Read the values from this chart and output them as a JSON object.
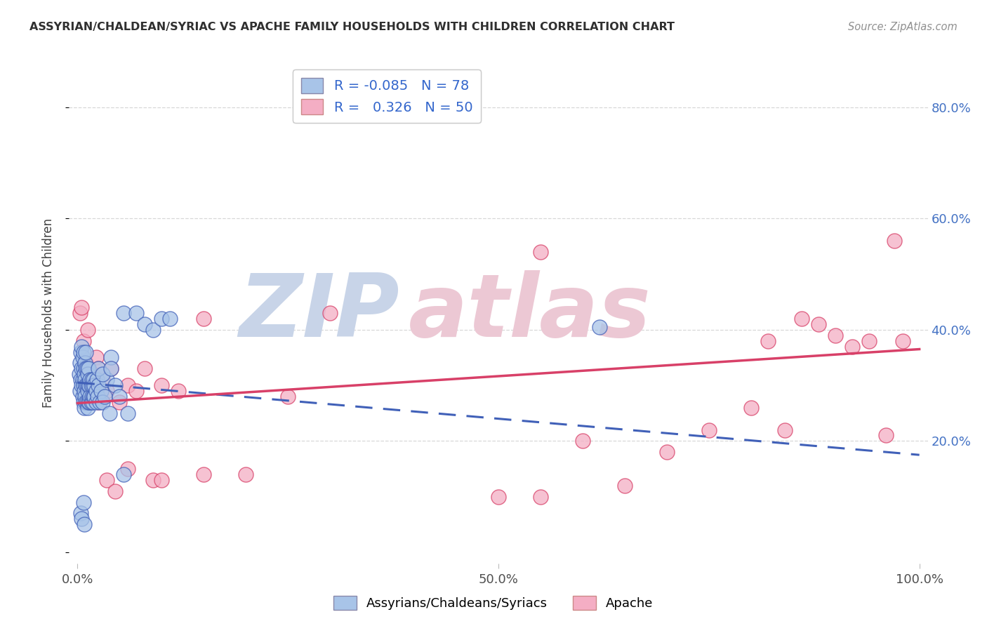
{
  "title": "ASSYRIAN/CHALDEAN/SYRIAC VS APACHE FAMILY HOUSEHOLDS WITH CHILDREN CORRELATION CHART",
  "source": "Source: ZipAtlas.com",
  "ylabel": "Family Households with Children",
  "legend_label1": "Assyrians/Chaldeans/Syriacs",
  "legend_label2": "Apache",
  "R1": -0.085,
  "N1": 78,
  "R2": 0.326,
  "N2": 50,
  "color1": "#a8c4e8",
  "color2": "#f4aec4",
  "line_color1": "#4060b8",
  "line_color2": "#d84068",
  "background_color": "#ffffff",
  "grid_color": "#d8d8d8",
  "title_color": "#303030",
  "source_color": "#909090",
  "right_tick_color": "#4472c4",
  "blue_x": [
    0.002,
    0.003,
    0.003,
    0.004,
    0.004,
    0.005,
    0.005,
    0.005,
    0.006,
    0.006,
    0.006,
    0.007,
    0.007,
    0.007,
    0.007,
    0.008,
    0.008,
    0.008,
    0.009,
    0.009,
    0.009,
    0.01,
    0.01,
    0.01,
    0.01,
    0.011,
    0.011,
    0.011,
    0.012,
    0.012,
    0.012,
    0.013,
    0.013,
    0.013,
    0.014,
    0.014,
    0.015,
    0.015,
    0.016,
    0.016,
    0.017,
    0.017,
    0.018,
    0.018,
    0.019,
    0.019,
    0.02,
    0.02,
    0.022,
    0.022,
    0.023,
    0.024,
    0.025,
    0.026,
    0.028,
    0.03,
    0.032,
    0.035,
    0.038,
    0.04,
    0.045,
    0.05,
    0.055,
    0.06,
    0.07,
    0.08,
    0.09,
    0.1,
    0.11,
    0.055,
    0.025,
    0.03,
    0.04,
    0.62,
    0.004,
    0.005,
    0.007,
    0.008
  ],
  "blue_y": [
    0.32,
    0.29,
    0.34,
    0.31,
    0.36,
    0.3,
    0.33,
    0.37,
    0.28,
    0.31,
    0.35,
    0.27,
    0.3,
    0.33,
    0.36,
    0.26,
    0.29,
    0.32,
    0.28,
    0.31,
    0.34,
    0.27,
    0.3,
    0.33,
    0.36,
    0.27,
    0.3,
    0.33,
    0.26,
    0.29,
    0.32,
    0.27,
    0.3,
    0.33,
    0.27,
    0.3,
    0.28,
    0.31,
    0.27,
    0.3,
    0.28,
    0.31,
    0.27,
    0.3,
    0.28,
    0.31,
    0.28,
    0.3,
    0.27,
    0.29,
    0.31,
    0.28,
    0.3,
    0.27,
    0.29,
    0.27,
    0.28,
    0.31,
    0.25,
    0.35,
    0.3,
    0.28,
    0.43,
    0.25,
    0.43,
    0.41,
    0.4,
    0.42,
    0.42,
    0.14,
    0.33,
    0.32,
    0.33,
    0.405,
    0.07,
    0.06,
    0.09,
    0.05
  ],
  "pink_x": [
    0.003,
    0.005,
    0.007,
    0.009,
    0.01,
    0.012,
    0.015,
    0.018,
    0.02,
    0.022,
    0.025,
    0.03,
    0.035,
    0.04,
    0.05,
    0.06,
    0.07,
    0.08,
    0.09,
    0.1,
    0.12,
    0.15,
    0.2,
    0.25,
    0.5,
    0.55,
    0.6,
    0.65,
    0.7,
    0.75,
    0.8,
    0.82,
    0.84,
    0.86,
    0.88,
    0.9,
    0.92,
    0.94,
    0.96,
    0.97,
    0.98,
    0.015,
    0.025,
    0.035,
    0.045,
    0.06,
    0.1,
    0.15,
    0.3,
    0.55
  ],
  "pink_y": [
    0.43,
    0.44,
    0.38,
    0.3,
    0.34,
    0.4,
    0.28,
    0.32,
    0.3,
    0.35,
    0.27,
    0.31,
    0.29,
    0.33,
    0.27,
    0.3,
    0.29,
    0.33,
    0.13,
    0.13,
    0.29,
    0.14,
    0.14,
    0.28,
    0.1,
    0.1,
    0.2,
    0.12,
    0.18,
    0.22,
    0.26,
    0.38,
    0.22,
    0.42,
    0.41,
    0.39,
    0.37,
    0.38,
    0.21,
    0.56,
    0.38,
    0.28,
    0.33,
    0.13,
    0.11,
    0.15,
    0.3,
    0.42,
    0.43,
    0.54
  ],
  "line1_x0": 0.0,
  "line1_x1": 1.0,
  "line1_y0": 0.305,
  "line1_y1": 0.175,
  "line2_x0": 0.0,
  "line2_x1": 1.0,
  "line2_y0": 0.268,
  "line2_y1": 0.365,
  "xlim_min": -0.01,
  "xlim_max": 1.01,
  "ylim_min": -0.02,
  "ylim_max": 0.88,
  "ytick_vals": [
    0.0,
    0.2,
    0.4,
    0.6,
    0.8
  ],
  "ytick_labels_right": [
    "",
    "20.0%",
    "40.0%",
    "60.0%",
    "80.0%"
  ],
  "xtick_vals": [
    0.0,
    0.5,
    1.0
  ],
  "xtick_labels": [
    "0.0%",
    "50.0%",
    "100.0%"
  ]
}
